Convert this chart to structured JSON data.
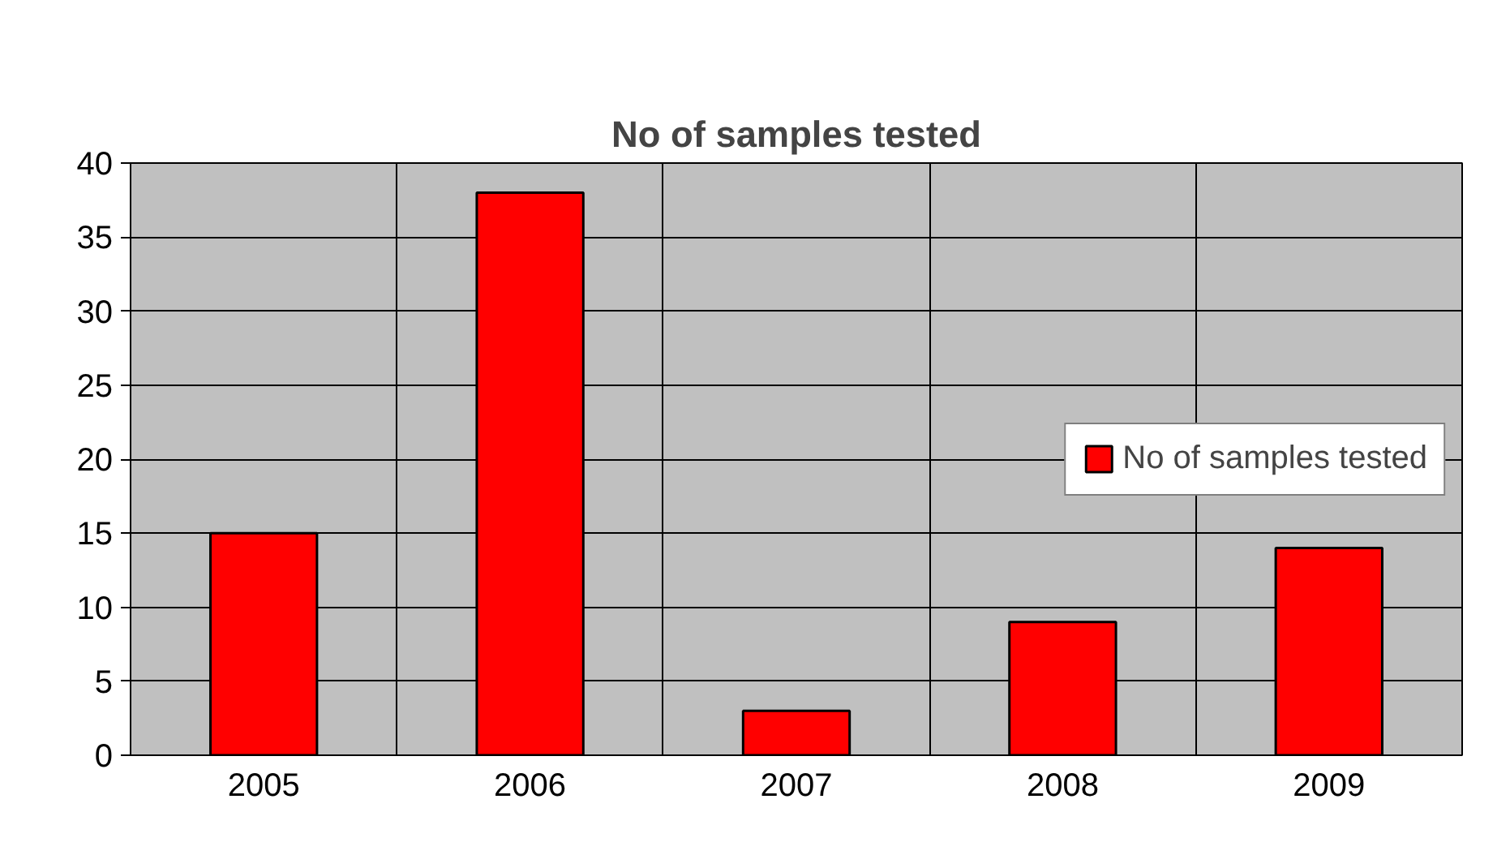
{
  "chart_data": {
    "type": "bar",
    "title": "No of samples tested",
    "categories": [
      "2005",
      "2006",
      "2007",
      "2008",
      "2009"
    ],
    "series": [
      {
        "name": "No of samples tested",
        "color": "#ff0000",
        "values": [
          15,
          38,
          3,
          9,
          14
        ]
      }
    ],
    "ylim": [
      0,
      40
    ],
    "yticks": [
      0,
      5,
      10,
      15,
      20,
      25,
      30,
      35,
      40
    ],
    "grid": true,
    "legend": "right"
  }
}
